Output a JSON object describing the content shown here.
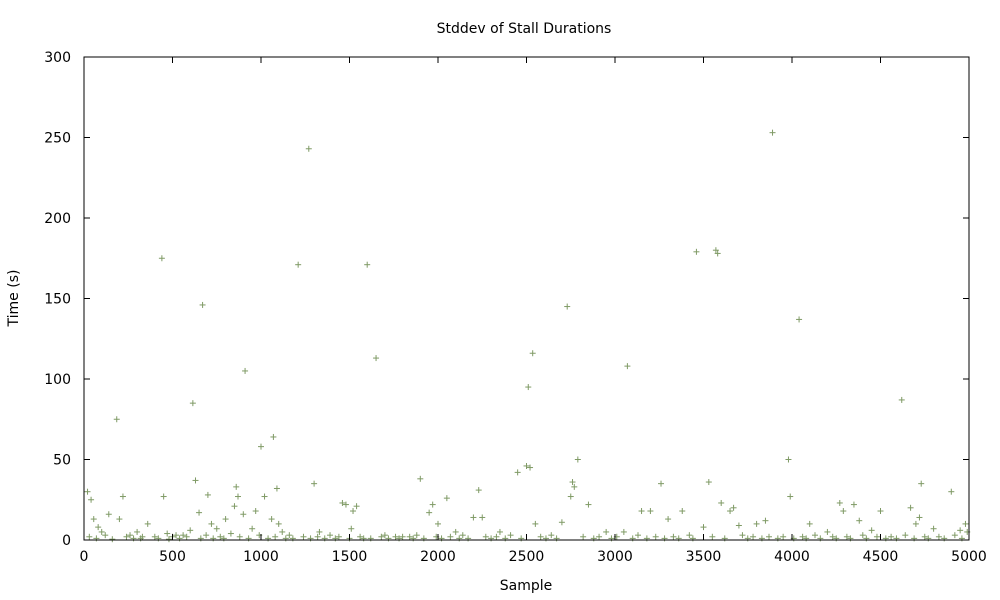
{
  "chart_data": {
    "type": "scatter",
    "title": "Stddev of Stall Durations",
    "xlabel": "Sample",
    "ylabel": "Time (s)",
    "xlim": [
      0,
      5000
    ],
    "ylim": [
      0,
      300
    ],
    "xticks": [
      "0",
      "500",
      "1000",
      "1500",
      "2000",
      "2500",
      "3000",
      "3500",
      "4000",
      "4500",
      "5000"
    ],
    "yticks": [
      "0",
      "50",
      "100",
      "150",
      "200",
      "250",
      "300"
    ],
    "grid": false,
    "marker": "+",
    "color": "#7f9a65",
    "series": [
      {
        "points": [
          [
            20,
            30
          ],
          [
            40,
            25
          ],
          [
            55,
            13
          ],
          [
            80,
            8
          ],
          [
            100,
            5
          ],
          [
            140,
            16
          ],
          [
            185,
            75
          ],
          [
            200,
            13
          ],
          [
            220,
            27
          ],
          [
            260,
            3
          ],
          [
            300,
            5
          ],
          [
            330,
            2
          ],
          [
            360,
            10
          ],
          [
            440,
            175
          ],
          [
            450,
            27
          ],
          [
            470,
            4
          ],
          [
            500,
            2
          ],
          [
            560,
            3
          ],
          [
            600,
            6
          ],
          [
            615,
            85
          ],
          [
            630,
            37
          ],
          [
            650,
            17
          ],
          [
            670,
            146
          ],
          [
            700,
            28
          ],
          [
            720,
            10
          ],
          [
            750,
            7
          ],
          [
            800,
            13
          ],
          [
            830,
            4
          ],
          [
            850,
            21
          ],
          [
            860,
            33
          ],
          [
            870,
            27
          ],
          [
            900,
            16
          ],
          [
            910,
            105
          ],
          [
            950,
            7
          ],
          [
            970,
            18
          ],
          [
            1000,
            58
          ],
          [
            1020,
            27
          ],
          [
            1060,
            13
          ],
          [
            1070,
            64
          ],
          [
            1090,
            32
          ],
          [
            1100,
            10
          ],
          [
            1120,
            5
          ],
          [
            1210,
            171
          ],
          [
            1270,
            243
          ],
          [
            1300,
            35
          ],
          [
            1330,
            5
          ],
          [
            1460,
            23
          ],
          [
            1480,
            22
          ],
          [
            1510,
            7
          ],
          [
            1520,
            18
          ],
          [
            1540,
            21
          ],
          [
            1600,
            171
          ],
          [
            1650,
            113
          ],
          [
            1700,
            3
          ],
          [
            1800,
            2
          ],
          [
            1900,
            38
          ],
          [
            1950,
            17
          ],
          [
            1970,
            22
          ],
          [
            2000,
            10
          ],
          [
            2050,
            26
          ],
          [
            2100,
            5
          ],
          [
            2200,
            14
          ],
          [
            2230,
            31
          ],
          [
            2250,
            14
          ],
          [
            2350,
            5
          ],
          [
            2450,
            42
          ],
          [
            2500,
            46
          ],
          [
            2510,
            95
          ],
          [
            2520,
            45
          ],
          [
            2535,
            116
          ],
          [
            2550,
            10
          ],
          [
            2700,
            11
          ],
          [
            2730,
            145
          ],
          [
            2750,
            27
          ],
          [
            2760,
            36
          ],
          [
            2770,
            33
          ],
          [
            2790,
            50
          ],
          [
            2850,
            22
          ],
          [
            2950,
            5
          ],
          [
            3050,
            5
          ],
          [
            3070,
            108
          ],
          [
            3150,
            18
          ],
          [
            3200,
            18
          ],
          [
            3260,
            35
          ],
          [
            3300,
            13
          ],
          [
            3380,
            18
          ],
          [
            3460,
            179
          ],
          [
            3500,
            8
          ],
          [
            3530,
            36
          ],
          [
            3570,
            180
          ],
          [
            3580,
            178
          ],
          [
            3600,
            23
          ],
          [
            3650,
            18
          ],
          [
            3670,
            20
          ],
          [
            3700,
            9
          ],
          [
            3800,
            10
          ],
          [
            3850,
            12
          ],
          [
            3890,
            253
          ],
          [
            3980,
            50
          ],
          [
            3990,
            27
          ],
          [
            4040,
            137
          ],
          [
            4100,
            10
          ],
          [
            4200,
            5
          ],
          [
            4270,
            23
          ],
          [
            4290,
            18
          ],
          [
            4350,
            22
          ],
          [
            4380,
            12
          ],
          [
            4450,
            6
          ],
          [
            4500,
            18
          ],
          [
            4620,
            87
          ],
          [
            4670,
            20
          ],
          [
            4700,
            10
          ],
          [
            4720,
            14
          ],
          [
            4730,
            35
          ],
          [
            4800,
            7
          ],
          [
            4900,
            30
          ],
          [
            4950,
            6
          ],
          [
            4980,
            10
          ],
          [
            4990,
            5
          ],
          [
            30,
            2
          ],
          [
            70,
            1
          ],
          [
            120,
            3
          ],
          [
            160,
            0.5
          ],
          [
            240,
            2
          ],
          [
            280,
            1
          ],
          [
            320,
            1
          ],
          [
            400,
            2
          ],
          [
            420,
            1
          ],
          [
            480,
            0.5
          ],
          [
            520,
            3
          ],
          [
            540,
            1
          ],
          [
            580,
            2
          ],
          [
            660,
            1
          ],
          [
            690,
            3
          ],
          [
            730,
            1
          ],
          [
            770,
            2
          ],
          [
            790,
            1
          ],
          [
            880,
            2
          ],
          [
            930,
            1
          ],
          [
            990,
            3
          ],
          [
            1040,
            1
          ],
          [
            1080,
            2
          ],
          [
            1140,
            1
          ],
          [
            1160,
            3
          ],
          [
            1180,
            1
          ],
          [
            1240,
            2
          ],
          [
            1280,
            1
          ],
          [
            1320,
            2
          ],
          [
            1360,
            1
          ],
          [
            1390,
            3
          ],
          [
            1420,
            1
          ],
          [
            1440,
            2
          ],
          [
            1500,
            1
          ],
          [
            1560,
            2
          ],
          [
            1580,
            1
          ],
          [
            1620,
            1
          ],
          [
            1680,
            2
          ],
          [
            1720,
            1
          ],
          [
            1760,
            2
          ],
          [
            1780,
            1
          ],
          [
            1840,
            2
          ],
          [
            1860,
            1
          ],
          [
            1880,
            3
          ],
          [
            1920,
            1
          ],
          [
            1990,
            2
          ],
          [
            2020,
            1
          ],
          [
            2070,
            2
          ],
          [
            2120,
            1
          ],
          [
            2140,
            3
          ],
          [
            2170,
            1
          ],
          [
            2270,
            2
          ],
          [
            2300,
            1
          ],
          [
            2330,
            2
          ],
          [
            2380,
            1
          ],
          [
            2410,
            3
          ],
          [
            2470,
            1
          ],
          [
            2580,
            2
          ],
          [
            2610,
            1
          ],
          [
            2640,
            3
          ],
          [
            2670,
            1
          ],
          [
            2820,
            2
          ],
          [
            2880,
            1
          ],
          [
            2910,
            2
          ],
          [
            2980,
            1
          ],
          [
            3010,
            2
          ],
          [
            3100,
            1
          ],
          [
            3130,
            3
          ],
          [
            3180,
            1
          ],
          [
            3230,
            2
          ],
          [
            3280,
            1
          ],
          [
            3330,
            2
          ],
          [
            3360,
            1
          ],
          [
            3420,
            3
          ],
          [
            3440,
            1
          ],
          [
            3550,
            2
          ],
          [
            3620,
            1
          ],
          [
            3720,
            3
          ],
          [
            3750,
            1
          ],
          [
            3780,
            2
          ],
          [
            3830,
            1
          ],
          [
            3870,
            2
          ],
          [
            3920,
            1
          ],
          [
            3950,
            2
          ],
          [
            4010,
            1
          ],
          [
            4060,
            2
          ],
          [
            4080,
            1
          ],
          [
            4130,
            3
          ],
          [
            4160,
            1
          ],
          [
            4230,
            2
          ],
          [
            4250,
            1
          ],
          [
            4310,
            2
          ],
          [
            4330,
            1
          ],
          [
            4400,
            3
          ],
          [
            4420,
            1
          ],
          [
            4480,
            2
          ],
          [
            4530,
            1
          ],
          [
            4560,
            2
          ],
          [
            4590,
            1
          ],
          [
            4640,
            3
          ],
          [
            4690,
            1
          ],
          [
            4750,
            2
          ],
          [
            4770,
            1
          ],
          [
            4830,
            2
          ],
          [
            4860,
            1
          ],
          [
            4920,
            3
          ],
          [
            4960,
            1
          ]
        ]
      }
    ]
  }
}
